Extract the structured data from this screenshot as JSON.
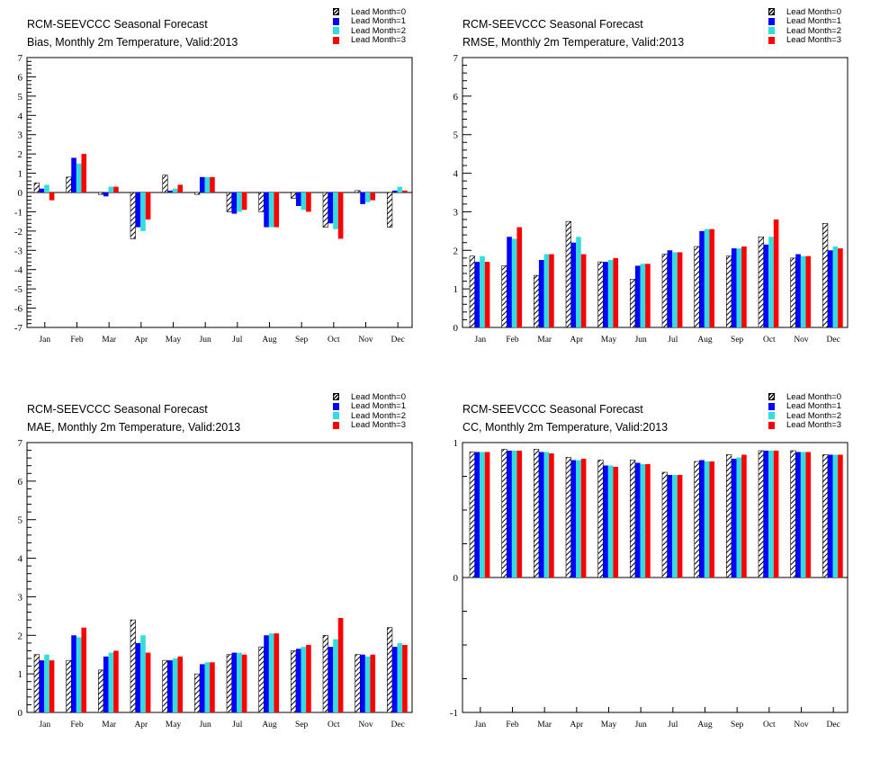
{
  "legend": [
    "Lead Month=0",
    "Lead Month=1",
    "Lead Month=2",
    "Lead Month=3"
  ],
  "series_colors": [
    "#000000",
    "#0000ff",
    "#33dddd",
    "#ff0000"
  ],
  "chart_data": [
    {
      "type": "bar",
      "title": "RCM-SEEVCCC Seasonal Forecast",
      "subtitle": "Bias, Monthly 2m Temperature, Valid:2013",
      "categories": [
        "Jan",
        "Feb",
        "Mar",
        "Apr",
        "May",
        "Jun",
        "Jul",
        "Aug",
        "Sep",
        "Oct",
        "Nov",
        "Dec"
      ],
      "ylim": [
        -7,
        7
      ],
      "yticks": [
        "-7",
        "-6",
        "-5",
        "-4",
        "-3",
        "-2",
        "-1",
        "0",
        "1",
        "2",
        "3",
        "4",
        "5",
        "6",
        "7"
      ],
      "series": [
        {
          "name": "Lead Month=0",
          "values": [
            0.5,
            0.8,
            -0.1,
            -2.4,
            0.9,
            -0.1,
            -1.0,
            -1.0,
            -0.3,
            -1.8,
            0.1,
            -1.8
          ]
        },
        {
          "name": "Lead Month=1",
          "values": [
            0.2,
            1.8,
            -0.2,
            -1.8,
            0.1,
            0.8,
            -1.1,
            -1.8,
            -0.7,
            -1.6,
            -0.6,
            0.1
          ]
        },
        {
          "name": "Lead Month=2",
          "values": [
            0.4,
            1.5,
            0.3,
            -2.0,
            0.2,
            0.8,
            -1.0,
            -1.8,
            -0.9,
            -1.9,
            -0.5,
            0.3
          ]
        },
        {
          "name": "Lead Month=3",
          "values": [
            -0.4,
            2.0,
            0.3,
            -1.4,
            0.4,
            0.8,
            -0.9,
            -1.8,
            -1.0,
            -2.4,
            -0.4,
            0.1
          ]
        }
      ]
    },
    {
      "type": "bar",
      "title": "RCM-SEEVCCC Seasonal Forecast",
      "subtitle": "RMSE, Monthly 2m Temperature, Valid:2013",
      "categories": [
        "Jan",
        "Feb",
        "Mar",
        "Apr",
        "May",
        "Jun",
        "Jul",
        "Aug",
        "Sep",
        "Oct",
        "Nov",
        "Dec"
      ],
      "ylim": [
        0,
        7
      ],
      "yticks": [
        "0",
        "1",
        "2",
        "3",
        "4",
        "5",
        "6",
        "7"
      ],
      "series": [
        {
          "name": "Lead Month=0",
          "values": [
            1.85,
            1.6,
            1.35,
            2.75,
            1.7,
            1.25,
            1.9,
            2.1,
            1.85,
            2.35,
            1.8,
            2.7
          ]
        },
        {
          "name": "Lead Month=1",
          "values": [
            1.7,
            2.35,
            1.75,
            2.2,
            1.7,
            1.6,
            2.0,
            2.5,
            2.05,
            2.15,
            1.9,
            2.0
          ]
        },
        {
          "name": "Lead Month=2",
          "values": [
            1.85,
            2.3,
            1.9,
            2.35,
            1.75,
            1.65,
            1.95,
            2.55,
            2.05,
            2.35,
            1.85,
            2.1
          ]
        },
        {
          "name": "Lead Month=3",
          "values": [
            1.7,
            2.6,
            1.9,
            1.9,
            1.8,
            1.65,
            1.95,
            2.55,
            2.1,
            2.8,
            1.85,
            2.05
          ]
        }
      ]
    },
    {
      "type": "bar",
      "title": "RCM-SEEVCCC Seasonal Forecast",
      "subtitle": "MAE, Monthly 2m Temperature, Valid:2013",
      "categories": [
        "Jan",
        "Feb",
        "Mar",
        "Apr",
        "May",
        "Jun",
        "Jul",
        "Aug",
        "Sep",
        "Oct",
        "Nov",
        "Dec"
      ],
      "ylim": [
        0,
        7
      ],
      "yticks": [
        "0",
        "1",
        "2",
        "3",
        "4",
        "5",
        "6",
        "7"
      ],
      "series": [
        {
          "name": "Lead Month=0",
          "values": [
            1.5,
            1.35,
            1.1,
            2.4,
            1.35,
            1.0,
            1.5,
            1.7,
            1.6,
            2.0,
            1.5,
            2.2
          ]
        },
        {
          "name": "Lead Month=1",
          "values": [
            1.35,
            2.0,
            1.45,
            1.8,
            1.35,
            1.25,
            1.55,
            2.0,
            1.65,
            1.7,
            1.5,
            1.7
          ]
        },
        {
          "name": "Lead Month=2",
          "values": [
            1.5,
            1.95,
            1.55,
            2.0,
            1.4,
            1.3,
            1.55,
            2.05,
            1.7,
            1.9,
            1.45,
            1.8
          ]
        },
        {
          "name": "Lead Month=3",
          "values": [
            1.35,
            2.2,
            1.6,
            1.55,
            1.45,
            1.3,
            1.5,
            2.05,
            1.75,
            2.45,
            1.5,
            1.75
          ]
        }
      ]
    },
    {
      "type": "bar",
      "title": "RCM-SEEVCCC Seasonal Forecast",
      "subtitle": "CC, Monthly 2m Temperature, Valid:2013",
      "categories": [
        "Jan",
        "Feb",
        "Mar",
        "Apr",
        "May",
        "Jun",
        "Jul",
        "Aug",
        "Sep",
        "Oct",
        "Nov",
        "Dec"
      ],
      "ylim": [
        -1,
        1
      ],
      "yticks": [
        "-1",
        "0",
        "1"
      ],
      "series": [
        {
          "name": "Lead Month=0",
          "values": [
            0.93,
            0.95,
            0.95,
            0.89,
            0.87,
            0.87,
            0.78,
            0.86,
            0.91,
            0.94,
            0.94,
            0.91
          ]
        },
        {
          "name": "Lead Month=1",
          "values": [
            0.93,
            0.94,
            0.93,
            0.87,
            0.83,
            0.85,
            0.76,
            0.87,
            0.88,
            0.94,
            0.93,
            0.91
          ]
        },
        {
          "name": "Lead Month=2",
          "values": [
            0.93,
            0.94,
            0.93,
            0.87,
            0.83,
            0.84,
            0.76,
            0.86,
            0.89,
            0.94,
            0.93,
            0.91
          ]
        },
        {
          "name": "Lead Month=3",
          "values": [
            0.93,
            0.94,
            0.92,
            0.88,
            0.82,
            0.84,
            0.76,
            0.86,
            0.91,
            0.94,
            0.93,
            0.91
          ]
        }
      ]
    }
  ]
}
